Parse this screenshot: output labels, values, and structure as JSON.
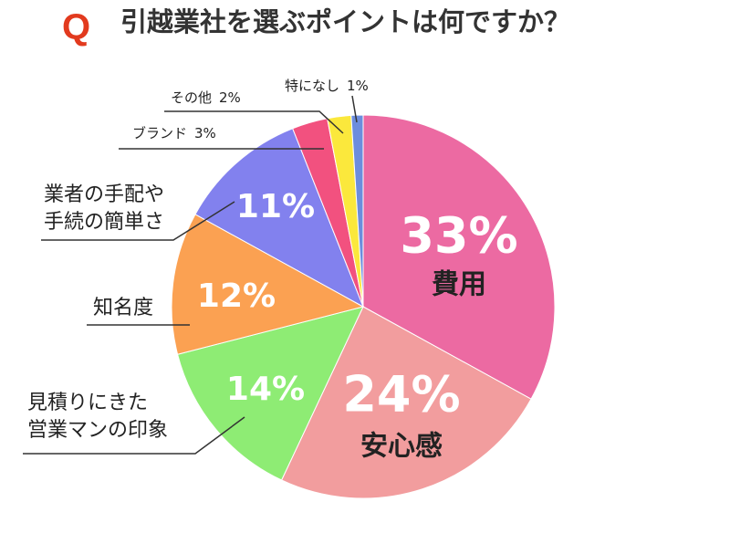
{
  "chart_data": {
    "type": "pie",
    "title_marker": "Q",
    "title": "引越業社を選ぶポイントは何ですか？",
    "categories": [
      "費用",
      "安心感",
      "見積りにきた\n営業マンの印象",
      "知名度",
      "業者の手配や\n手続の簡単さ",
      "ブランド",
      "その他",
      "特になし"
    ],
    "values": [
      33,
      24,
      14,
      12,
      11,
      3,
      2,
      1
    ],
    "value_labels": [
      "33%",
      "24%",
      "14%",
      "12%",
      "11%",
      "3%",
      "2%",
      "1%"
    ],
    "colors": [
      "#ec6aa2",
      "#f29d9e",
      "#8eec74",
      "#fba152",
      "#8281ee",
      "#f2517f",
      "#fbe83c",
      "#6c8ddd"
    ]
  }
}
